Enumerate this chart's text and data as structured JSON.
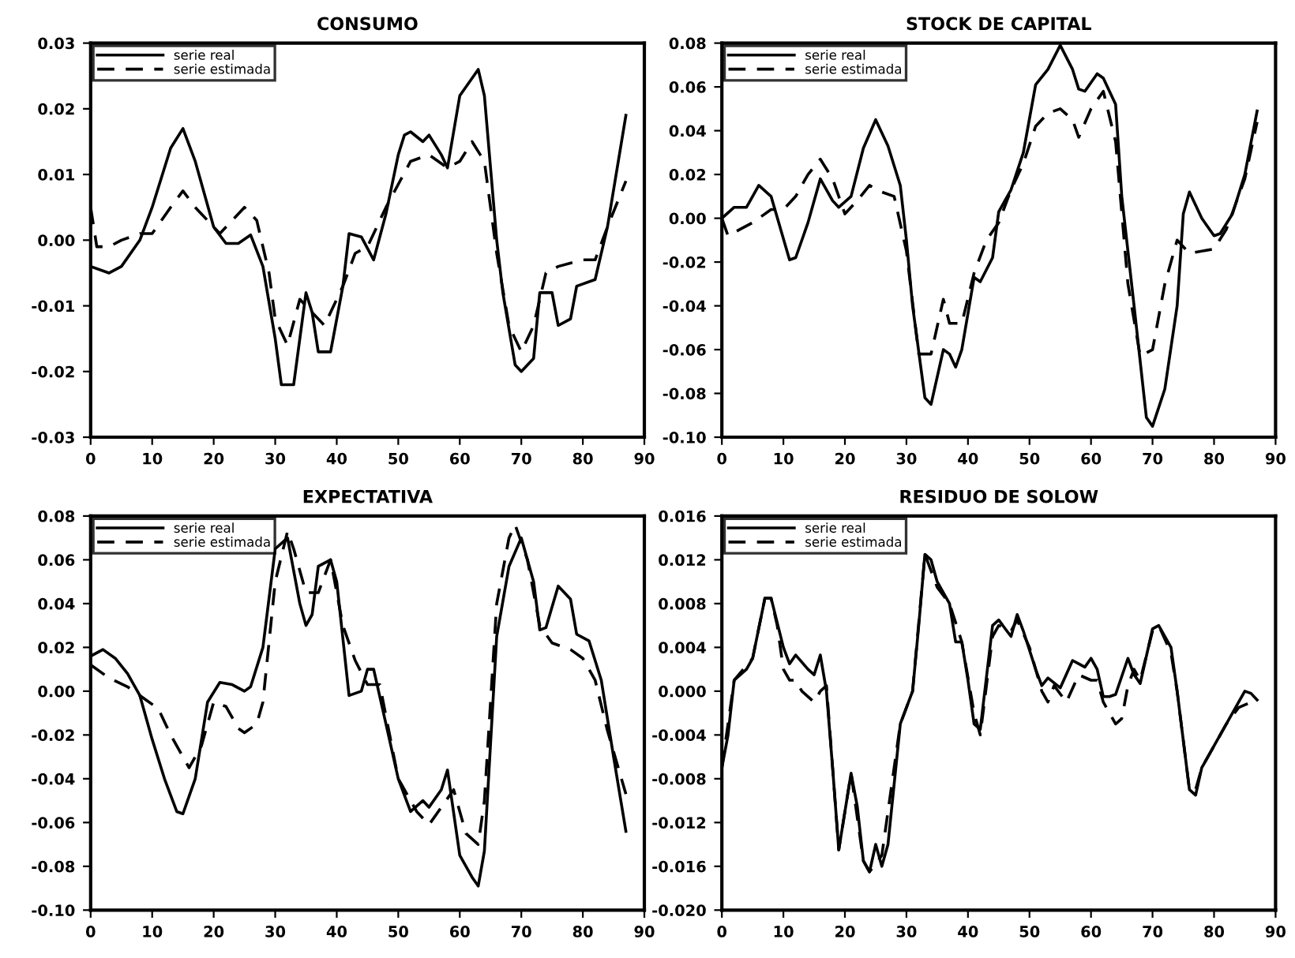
{
  "chart_data": [
    {
      "type": "line",
      "title": "CONSUMO",
      "legend": "top left",
      "grid": false,
      "xlim": [
        0,
        90
      ],
      "xticks": [
        0,
        10,
        20,
        30,
        40,
        50,
        60,
        70,
        80,
        90
      ],
      "ylim": [
        -0.03,
        0.03
      ],
      "yticks": [
        {
          "value": -0.03,
          "label": "-0.03"
        },
        {
          "value": -0.02,
          "label": "-0.02"
        },
        {
          "value": -0.01,
          "label": "-0.01"
        },
        {
          "value": 0,
          "label": "0.00"
        },
        {
          "value": 0.01,
          "label": "0.01"
        },
        {
          "value": 0.02,
          "label": "0.02"
        },
        {
          "value": 0.03,
          "label": "0.03"
        }
      ],
      "series": [
        {
          "name": "serie real",
          "color": "#000000",
          "line_style": "solid",
          "x": [
            0,
            3,
            5,
            8,
            10,
            13,
            15,
            17,
            20,
            22,
            24,
            26,
            28,
            30,
            31,
            33,
            35,
            36,
            37,
            39,
            41,
            42,
            44,
            46,
            48,
            50,
            51,
            52,
            54,
            55,
            57,
            58,
            60,
            63,
            64,
            66,
            67,
            69,
            70,
            72,
            73,
            75,
            76,
            78,
            79,
            82,
            84,
            87
          ],
          "values": [
            -0.004,
            -0.005,
            -0.004,
            0.0,
            0.005,
            0.014,
            0.017,
            0.012,
            0.002,
            -0.0005,
            -0.0005,
            0.0008,
            -0.004,
            -0.015,
            -0.022,
            -0.022,
            -0.008,
            -0.011,
            -0.017,
            -0.017,
            -0.007,
            0.001,
            0.0005,
            -0.003,
            0.004,
            0.013,
            0.016,
            0.0165,
            0.015,
            0.016,
            0.013,
            0.011,
            0.022,
            0.026,
            0.022,
            0.0,
            -0.008,
            -0.019,
            -0.02,
            -0.018,
            -0.008,
            -0.008,
            -0.013,
            -0.012,
            -0.007,
            -0.006,
            0.002,
            0.019
          ]
        },
        {
          "name": "serie estimada",
          "color": "#000000",
          "line_style": "dashed",
          "x": [
            0,
            1,
            3,
            5,
            8,
            10,
            13,
            15,
            17,
            19,
            21,
            23,
            25,
            27,
            29,
            30,
            32,
            34,
            36,
            38,
            41,
            43,
            45,
            48,
            52,
            55,
            58,
            60,
            62,
            64,
            66,
            68,
            70,
            72,
            74,
            76,
            80,
            82,
            84,
            87
          ],
          "values": [
            0.005,
            -0.001,
            -0.001,
            0.0,
            0.001,
            0.001,
            0.005,
            0.0075,
            0.005,
            0.003,
            0.001,
            0.003,
            0.005,
            0.003,
            -0.005,
            -0.012,
            -0.016,
            -0.009,
            -0.011,
            -0.013,
            -0.007,
            -0.002,
            -0.001,
            0.005,
            0.012,
            0.013,
            0.011,
            0.012,
            0.015,
            0.012,
            -0.002,
            -0.013,
            -0.017,
            -0.013,
            -0.005,
            -0.004,
            -0.003,
            -0.003,
            0.002,
            0.009
          ]
        }
      ]
    },
    {
      "type": "line",
      "title": "STOCK DE CAPITAL",
      "legend": "top left",
      "grid": false,
      "xlim": [
        0,
        90
      ],
      "xticks": [
        0,
        10,
        20,
        30,
        40,
        50,
        60,
        70,
        80,
        90
      ],
      "ylim": [
        -0.1,
        0.08
      ],
      "yticks": [
        {
          "value": -0.1,
          "label": "-0.10"
        },
        {
          "value": -0.08,
          "label": "-0.08"
        },
        {
          "value": -0.06,
          "label": "-0.06"
        },
        {
          "value": -0.04,
          "label": "-0.04"
        },
        {
          "value": -0.02,
          "label": "-0.02"
        },
        {
          "value": 0,
          "label": "0.00"
        },
        {
          "value": 0.02,
          "label": "0.02"
        },
        {
          "value": 0.04,
          "label": "0.04"
        },
        {
          "value": 0.06,
          "label": "0.06"
        },
        {
          "value": 0.08,
          "label": "0.08"
        }
      ],
      "series": [
        {
          "name": "serie real",
          "color": "#000000",
          "line_style": "solid",
          "x": [
            0,
            2,
            4,
            6,
            8,
            11,
            12,
            14,
            16,
            18,
            19,
            21,
            23,
            25,
            27,
            29,
            30,
            31,
            33,
            34,
            36,
            37,
            38,
            39,
            41,
            42,
            44,
            45,
            47,
            49,
            51,
            53,
            55,
            57,
            58,
            59,
            61,
            62,
            64,
            65,
            67,
            69,
            70,
            72,
            74,
            75,
            76,
            78,
            80,
            81,
            83,
            85,
            87
          ],
          "values": [
            0.0,
            0.005,
            0.005,
            0.015,
            0.01,
            -0.019,
            -0.018,
            -0.002,
            0.018,
            0.008,
            0.005,
            0.01,
            0.032,
            0.045,
            0.033,
            0.015,
            -0.01,
            -0.04,
            -0.082,
            -0.085,
            -0.06,
            -0.062,
            -0.068,
            -0.06,
            -0.027,
            -0.029,
            -0.018,
            0.003,
            0.013,
            0.03,
            0.061,
            0.068,
            0.079,
            0.068,
            0.059,
            0.058,
            0.066,
            0.064,
            0.052,
            0.01,
            -0.04,
            -0.091,
            -0.095,
            -0.078,
            -0.04,
            0.002,
            0.012,
            0.0,
            -0.008,
            -0.007,
            0.002,
            0.02,
            0.049
          ]
        },
        {
          "name": "serie estimada",
          "color": "#000000",
          "line_style": "dashed",
          "x": [
            0,
            1,
            3,
            5,
            8,
            10,
            12,
            14,
            16,
            18,
            20,
            22,
            24,
            26,
            28,
            30,
            32,
            34,
            36,
            37,
            39,
            41,
            43,
            45,
            47,
            49,
            51,
            53,
            55,
            57,
            58,
            60,
            62,
            64,
            66,
            68,
            70,
            72,
            74,
            76,
            80,
            82,
            85,
            87
          ],
          "values": [
            0.0,
            -0.008,
            -0.005,
            -0.002,
            0.004,
            0.004,
            0.01,
            0.02,
            0.027,
            0.018,
            0.002,
            0.008,
            0.015,
            0.012,
            0.01,
            -0.015,
            -0.062,
            -0.062,
            -0.037,
            -0.048,
            -0.048,
            -0.025,
            -0.01,
            -0.002,
            0.013,
            0.025,
            0.042,
            0.048,
            0.05,
            0.045,
            0.037,
            0.05,
            0.058,
            0.035,
            -0.03,
            -0.063,
            -0.06,
            -0.03,
            -0.01,
            -0.016,
            -0.014,
            -0.005,
            0.018,
            0.044
          ]
        }
      ]
    },
    {
      "type": "line",
      "title": "EXPECTATIVA",
      "legend": "top left",
      "grid": false,
      "xlim": [
        0,
        90
      ],
      "xticks": [
        0,
        10,
        20,
        30,
        40,
        50,
        60,
        70,
        80,
        90
      ],
      "ylim": [
        -0.1,
        0.08
      ],
      "yticks": [
        {
          "value": -0.1,
          "label": "-0.10"
        },
        {
          "value": -0.08,
          "label": "-0.08"
        },
        {
          "value": -0.06,
          "label": "-0.06"
        },
        {
          "value": -0.04,
          "label": "-0.04"
        },
        {
          "value": -0.02,
          "label": "-0.02"
        },
        {
          "value": 0,
          "label": "0.00"
        },
        {
          "value": 0.02,
          "label": "0.02"
        },
        {
          "value": 0.04,
          "label": "0.04"
        },
        {
          "value": 0.06,
          "label": "0.06"
        },
        {
          "value": 0.08,
          "label": "0.08"
        }
      ],
      "series": [
        {
          "name": "serie real",
          "color": "#000000",
          "line_style": "solid",
          "x": [
            0,
            2,
            4,
            6,
            8,
            10,
            12,
            14,
            15,
            17,
            19,
            21,
            23,
            25,
            26,
            28,
            30,
            32,
            34,
            35,
            36,
            37,
            39,
            40,
            42,
            44,
            45,
            46,
            48,
            50,
            52,
            54,
            55,
            57,
            58,
            60,
            62,
            63,
            64,
            66,
            68,
            70,
            72,
            73,
            74,
            76,
            78,
            79,
            81,
            83,
            85,
            87
          ],
          "values": [
            0.016,
            0.019,
            0.015,
            0.008,
            -0.002,
            -0.022,
            -0.04,
            -0.055,
            -0.056,
            -0.04,
            -0.005,
            0.004,
            0.003,
            0.0,
            0.002,
            0.02,
            0.065,
            0.07,
            0.04,
            0.03,
            0.035,
            0.057,
            0.06,
            0.05,
            -0.002,
            0.0,
            0.01,
            0.01,
            -0.015,
            -0.04,
            -0.055,
            -0.05,
            -0.053,
            -0.045,
            -0.036,
            -0.075,
            -0.085,
            -0.089,
            -0.073,
            0.025,
            0.057,
            0.07,
            0.05,
            0.028,
            0.029,
            0.048,
            0.042,
            0.026,
            0.023,
            0.005,
            -0.03,
            -0.064
          ]
        },
        {
          "name": "serie estimada",
          "color": "#000000",
          "line_style": "dashed",
          "x": [
            0,
            3,
            6,
            9,
            11,
            13,
            16,
            18,
            20,
            22,
            24,
            25,
            27,
            28,
            30,
            32,
            33,
            35,
            37,
            39,
            41,
            43,
            45,
            47,
            50,
            53,
            55,
            57,
            59,
            61,
            63,
            64,
            66,
            68,
            69,
            71,
            73,
            75,
            78,
            80,
            82,
            84,
            87
          ],
          "values": [
            0.012,
            0.006,
            0.002,
            -0.004,
            -0.008,
            -0.02,
            -0.035,
            -0.025,
            -0.005,
            -0.007,
            -0.017,
            -0.019,
            -0.015,
            -0.005,
            0.05,
            0.073,
            0.065,
            0.045,
            0.045,
            0.06,
            0.03,
            0.014,
            0.003,
            0.003,
            -0.04,
            -0.055,
            -0.061,
            -0.053,
            -0.045,
            -0.065,
            -0.07,
            -0.05,
            0.04,
            0.07,
            0.076,
            0.06,
            0.03,
            0.022,
            0.019,
            0.015,
            0.005,
            -0.018,
            -0.047
          ]
        }
      ]
    },
    {
      "type": "line",
      "title": "RESIDUO DE SOLOW",
      "legend": "top left",
      "grid": false,
      "xlim": [
        0,
        90
      ],
      "xticks": [
        0,
        10,
        20,
        30,
        40,
        50,
        60,
        70,
        80,
        90
      ],
      "ylim": [
        -0.02,
        0.016
      ],
      "yticks": [
        {
          "value": -0.02,
          "label": "-0.020"
        },
        {
          "value": -0.016,
          "label": "-0.016"
        },
        {
          "value": -0.012,
          "label": "-0.012"
        },
        {
          "value": -0.008,
          "label": "-0.008"
        },
        {
          "value": -0.004,
          "label": "-0.004"
        },
        {
          "value": 0,
          "label": "0.000"
        },
        {
          "value": 0.004,
          "label": "0.004"
        },
        {
          "value": 0.008,
          "label": "0.008"
        },
        {
          "value": 0.012,
          "label": "0.012"
        },
        {
          "value": 0.016,
          "label": "0.016"
        }
      ],
      "series": [
        {
          "name": "serie real",
          "color": "#000000",
          "line_style": "solid",
          "x": [
            0,
            1,
            2,
            4,
            5,
            7,
            8,
            10,
            11,
            12,
            14,
            15,
            16,
            17,
            18,
            19,
            21,
            22,
            23,
            24,
            25,
            26,
            27,
            29,
            31,
            32,
            33,
            34,
            35,
            37,
            38,
            39,
            40,
            41,
            42,
            44,
            45,
            47,
            48,
            49,
            51,
            52,
            53,
            55,
            57,
            58,
            59,
            60,
            61,
            62,
            63,
            64,
            66,
            67,
            68,
            70,
            71,
            73,
            74,
            76,
            77,
            78,
            80,
            82,
            84,
            85,
            86,
            87
          ],
          "values": [
            -0.007,
            -0.004,
            0.001,
            0.002,
            0.003,
            0.0085,
            0.0085,
            0.004,
            0.0025,
            0.0033,
            0.002,
            0.0015,
            0.0033,
            0.0,
            -0.007,
            -0.0145,
            -0.0075,
            -0.0105,
            -0.0155,
            -0.0165,
            -0.014,
            -0.016,
            -0.014,
            -0.003,
            0.0,
            0.006,
            0.0125,
            0.012,
            0.01,
            0.008,
            0.0045,
            0.0045,
            0.001,
            -0.003,
            -0.0035,
            0.006,
            0.0065,
            0.005,
            0.007,
            0.0055,
            0.002,
            0.0005,
            0.0012,
            0.0003,
            0.0028,
            0.0025,
            0.0022,
            0.003,
            0.002,
            -0.0005,
            -0.0005,
            -0.0003,
            0.003,
            0.0015,
            0.0007,
            0.0057,
            0.006,
            0.004,
            0.0,
            -0.009,
            -0.0095,
            -0.007,
            -0.005,
            -0.003,
            -0.001,
            0.0,
            -0.0002,
            -0.0008
          ]
        },
        {
          "name": "serie estimada",
          "color": "#000000",
          "line_style": "dashed",
          "x": [
            0,
            2,
            5,
            7,
            8,
            9,
            10,
            11,
            12,
            13,
            15,
            16,
            17,
            18,
            19,
            21,
            23,
            24,
            26,
            29,
            31,
            33,
            35,
            37,
            39,
            41,
            42,
            44,
            45,
            47,
            48,
            50,
            52,
            53,
            54,
            56,
            58,
            60,
            61,
            62,
            64,
            65,
            66,
            67,
            68,
            70,
            71,
            73,
            74,
            76,
            77,
            78,
            80,
            82,
            84,
            86,
            87
          ],
          "values": [
            -0.007,
            0.001,
            0.003,
            0.0085,
            0.0085,
            0.006,
            0.002,
            0.001,
            0.001,
            0.0,
            -0.001,
            0.0,
            0.0005,
            -0.007,
            -0.0145,
            -0.0075,
            -0.0155,
            -0.0165,
            -0.015,
            -0.003,
            0.0,
            0.0125,
            0.0095,
            0.008,
            0.0045,
            -0.002,
            -0.004,
            0.005,
            0.006,
            0.0055,
            0.0065,
            0.004,
            0.0,
            -0.001,
            0.0005,
            -0.001,
            0.0015,
            0.001,
            0.001,
            -0.001,
            -0.003,
            -0.0025,
            0.0005,
            0.002,
            0.001,
            0.0055,
            0.006,
            0.0035,
            0.0,
            -0.009,
            -0.009,
            -0.007,
            -0.005,
            -0.003,
            -0.0015,
            -0.001,
            -0.0012
          ]
        }
      ]
    }
  ]
}
